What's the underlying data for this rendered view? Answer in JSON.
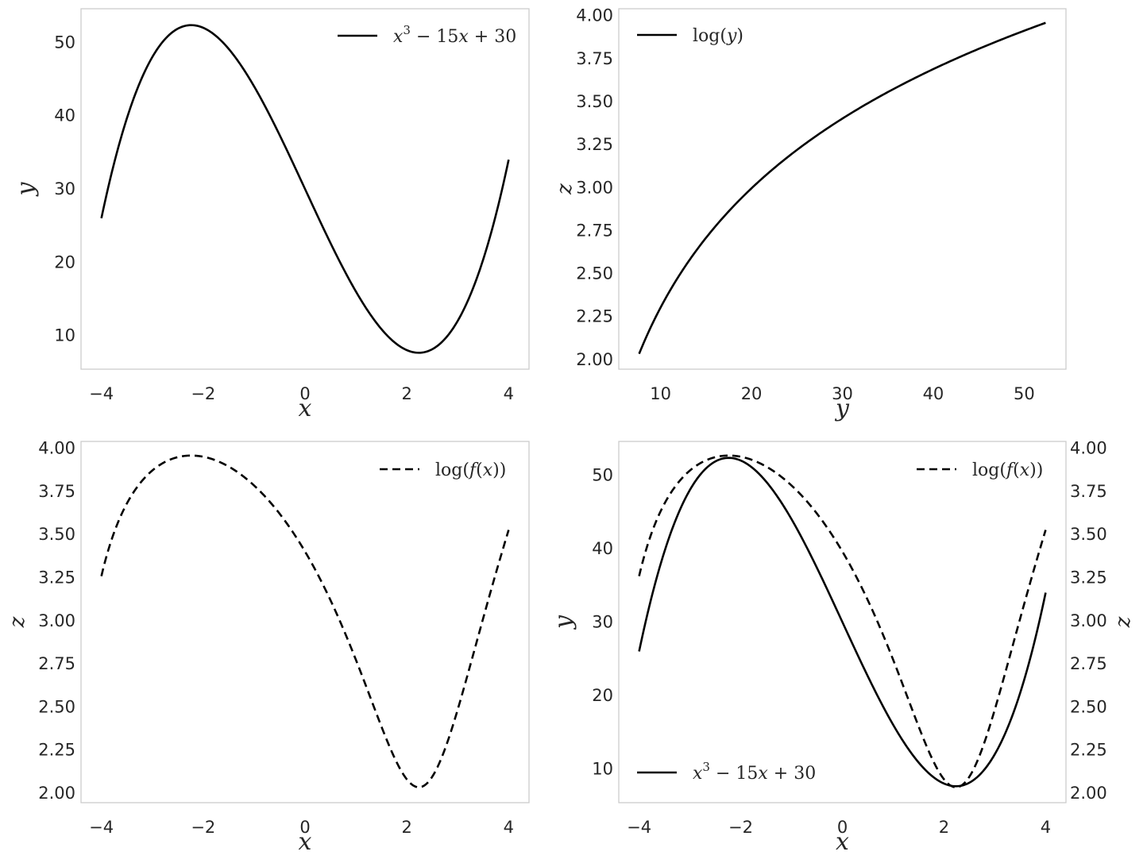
{
  "chart_data": [
    {
      "type": "line",
      "function": "f(x) = x^3 - 15x + 30",
      "x_range": [
        -4,
        4
      ],
      "xlabel": "x",
      "ylabel": "y",
      "xlim": [
        -4.4,
        4.4
      ],
      "ylim": [
        5.4,
        54.6
      ],
      "xticks": [
        -4,
        -2,
        0,
        2,
        4
      ],
      "xtick_labels": [
        "−4",
        "−2",
        "0",
        "2",
        "4"
      ],
      "yticks": [
        10,
        20,
        30,
        40,
        50
      ],
      "ytick_labels": [
        "10",
        "20",
        "30",
        "40",
        "50"
      ],
      "grid": false,
      "legend_position": "top-right",
      "series": [
        {
          "name": "x^3 − 15x + 30",
          "style": "solid",
          "color": "#000000",
          "x": [
            -4,
            -3,
            -2.236,
            -1,
            0,
            1,
            2.236,
            3,
            4
          ],
          "y": [
            26,
            48,
            52.36,
            44,
            30,
            16,
            7.64,
            12,
            34
          ]
        }
      ]
    },
    {
      "type": "line",
      "function": "z = log(y)",
      "xlabel": "y",
      "ylabel": "z",
      "xlim": [
        5.4,
        54.6
      ],
      "ylim": [
        1.944,
        4.04
      ],
      "xticks": [
        10,
        20,
        30,
        40,
        50
      ],
      "xtick_labels": [
        "10",
        "20",
        "30",
        "40",
        "50"
      ],
      "yticks": [
        2.0,
        2.25,
        2.5,
        2.75,
        3.0,
        3.25,
        3.5,
        3.75,
        4.0
      ],
      "ytick_labels": [
        "2.00",
        "2.25",
        "2.50",
        "2.75",
        "3.00",
        "3.25",
        "3.50",
        "3.75",
        "4.00"
      ],
      "grid": false,
      "legend_position": "top-left",
      "series": [
        {
          "name": "log(y)",
          "style": "solid",
          "color": "#000000",
          "x": [
            7.64,
            10,
            20,
            30,
            40,
            52.36
          ],
          "y": [
            2.033,
            2.303,
            2.996,
            3.401,
            3.689,
            3.958
          ]
        }
      ]
    },
    {
      "type": "line",
      "function": "z = log(f(x))",
      "x_range": [
        -4,
        4
      ],
      "xlabel": "x",
      "ylabel": "z",
      "xlim": [
        -4.4,
        4.4
      ],
      "ylim": [
        1.944,
        4.04
      ],
      "xticks": [
        -4,
        -2,
        0,
        2,
        4
      ],
      "xtick_labels": [
        "−4",
        "−2",
        "0",
        "2",
        "4"
      ],
      "yticks": [
        2.0,
        2.25,
        2.5,
        2.75,
        3.0,
        3.25,
        3.5,
        3.75,
        4.0
      ],
      "ytick_labels": [
        "2.00",
        "2.25",
        "2.50",
        "2.75",
        "3.00",
        "3.25",
        "3.50",
        "3.75",
        "4.00"
      ],
      "grid": false,
      "legend_position": "top-right",
      "series": [
        {
          "name": "log(f(x))",
          "style": "dashed",
          "color": "#000000",
          "x": [
            -4,
            -2.236,
            0,
            2.236,
            4
          ],
          "y": [
            3.258,
            3.958,
            3.401,
            2.033,
            3.526
          ]
        }
      ]
    },
    {
      "type": "line",
      "twin_axes": true,
      "x_range": [
        -4,
        4
      ],
      "xlabel": "x",
      "ylabel": "y",
      "ylabel_right": "z",
      "xlim": [
        -4.4,
        4.4
      ],
      "ylim": [
        5.4,
        54.6
      ],
      "ylim_right": [
        1.944,
        4.04
      ],
      "xticks": [
        -4,
        -2,
        0,
        2,
        4
      ],
      "xtick_labels": [
        "−4",
        "−2",
        "0",
        "2",
        "4"
      ],
      "yticks": [
        10,
        20,
        30,
        40,
        50
      ],
      "ytick_labels": [
        "10",
        "20",
        "30",
        "40",
        "50"
      ],
      "yticks_right": [
        2.0,
        2.25,
        2.5,
        2.75,
        3.0,
        3.25,
        3.5,
        3.75,
        4.0
      ],
      "ytick_labels_right": [
        "2.00",
        "2.25",
        "2.50",
        "2.75",
        "3.00",
        "3.25",
        "3.50",
        "3.75",
        "4.00"
      ],
      "grid": false,
      "series": [
        {
          "name": "x^3 − 15x + 30",
          "style": "solid",
          "axis": "left",
          "legend_position": "bottom-left",
          "color": "#000000"
        },
        {
          "name": "log(f(x))",
          "style": "dashed",
          "axis": "right",
          "legend_position": "top-right",
          "color": "#000000"
        }
      ]
    }
  ]
}
